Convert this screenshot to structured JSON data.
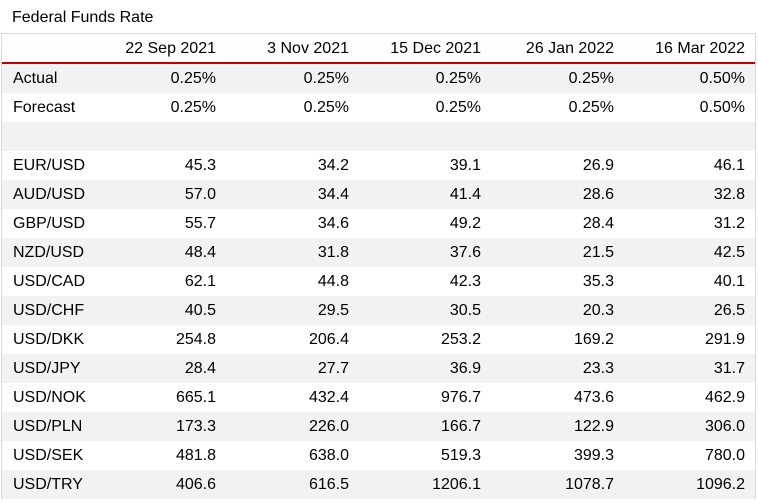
{
  "title": "Federal Funds Rate",
  "columns": [
    "",
    "22 Sep 2021",
    "3 Nov 2021",
    "15 Dec 2021",
    "26 Jan 2022",
    "16 Mar 2022"
  ],
  "rows": [
    {
      "label": "Actual",
      "values": [
        "0.25%",
        "0.25%",
        "0.25%",
        "0.25%",
        "0.50%"
      ]
    },
    {
      "label": "Forecast",
      "values": [
        "0.25%",
        "0.25%",
        "0.25%",
        "0.25%",
        "0.50%"
      ]
    },
    {
      "label": "",
      "values": [
        "",
        "",
        "",
        "",
        ""
      ]
    },
    {
      "label": "EUR/USD",
      "values": [
        "45.3",
        "34.2",
        "39.1",
        "26.9",
        "46.1"
      ]
    },
    {
      "label": "AUD/USD",
      "values": [
        "57.0",
        "34.4",
        "41.4",
        "28.6",
        "32.8"
      ]
    },
    {
      "label": "GBP/USD",
      "values": [
        "55.7",
        "34.6",
        "49.2",
        "28.4",
        "31.2"
      ]
    },
    {
      "label": "NZD/USD",
      "values": [
        "48.4",
        "31.8",
        "37.6",
        "21.5",
        "42.5"
      ]
    },
    {
      "label": "USD/CAD",
      "values": [
        "62.1",
        "44.8",
        "42.3",
        "35.3",
        "40.1"
      ]
    },
    {
      "label": "USD/CHF",
      "values": [
        "40.5",
        "29.5",
        "30.5",
        "20.3",
        "26.5"
      ]
    },
    {
      "label": "USD/DKK",
      "values": [
        "254.8",
        "206.4",
        "253.2",
        "169.2",
        "291.9"
      ]
    },
    {
      "label": "USD/JPY",
      "values": [
        "28.4",
        "27.7",
        "36.9",
        "23.3",
        "31.7"
      ]
    },
    {
      "label": "USD/NOK",
      "values": [
        "665.1",
        "432.4",
        "976.7",
        "473.6",
        "462.9"
      ]
    },
    {
      "label": "USD/PLN",
      "values": [
        "173.3",
        "226.0",
        "166.7",
        "122.9",
        "306.0"
      ]
    },
    {
      "label": "USD/SEK",
      "values": [
        "481.8",
        "638.0",
        "519.3",
        "399.3",
        "780.0"
      ]
    },
    {
      "label": "USD/TRY",
      "values": [
        "406.6",
        "616.5",
        "1206.1",
        "1078.7",
        "1096.2"
      ]
    }
  ]
}
